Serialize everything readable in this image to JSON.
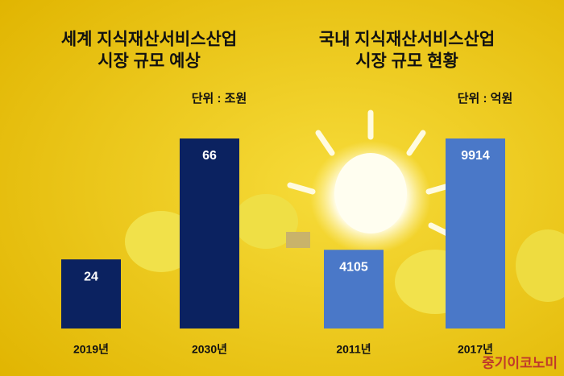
{
  "chart_data": [
    {
      "type": "bar",
      "title": [
        "세계 지식재산서비스산업",
        "시장 규모 예상"
      ],
      "unit": "단위 : 조원",
      "categories": [
        "2019년",
        "2030년"
      ],
      "values": [
        24,
        66
      ],
      "color": "#0b2260"
    },
    {
      "type": "bar",
      "title": [
        "국내 지식재산서비스산업",
        "시장 규모 현황"
      ],
      "unit": "단위 : 억원",
      "categories": [
        "2011년",
        "2017년"
      ],
      "values": [
        4105,
        9914
      ],
      "color": "#4a78c8"
    }
  ],
  "credit": "중기이코노미"
}
